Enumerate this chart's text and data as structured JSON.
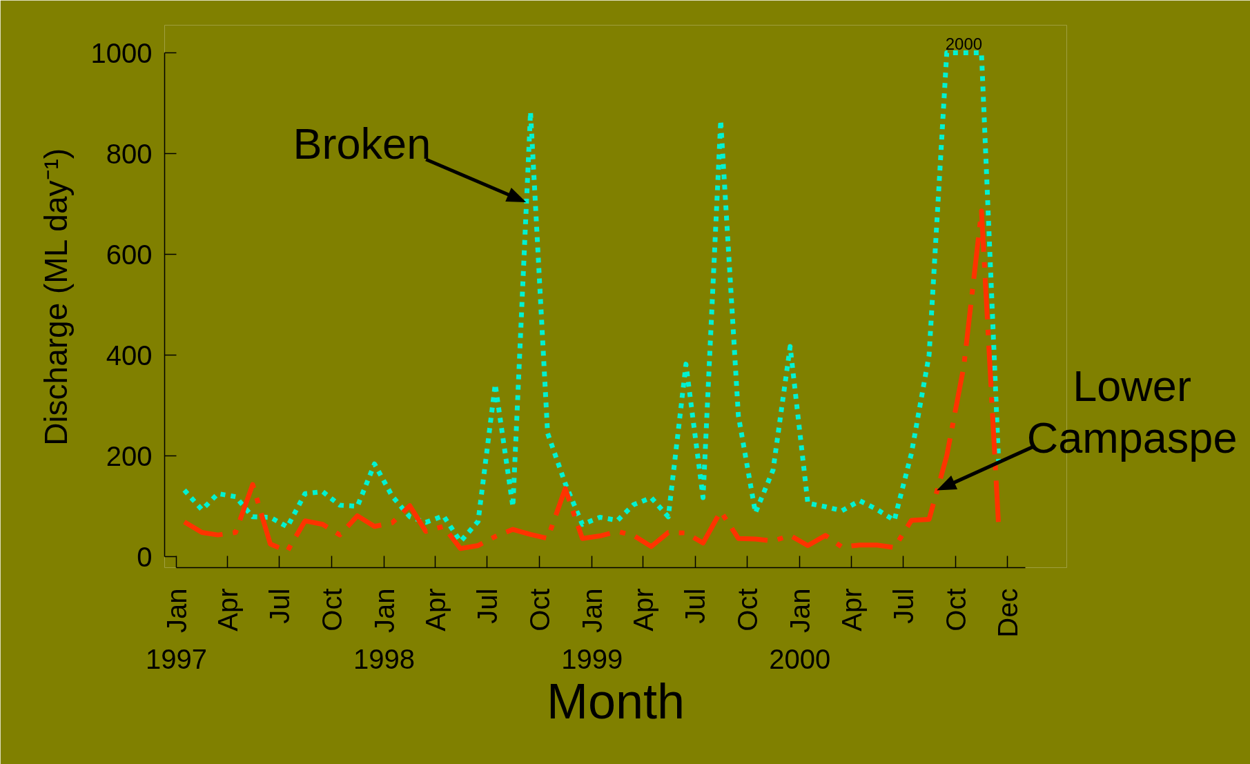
{
  "chart_data": {
    "type": "line",
    "xlabel": "Month",
    "ylabel": "Discharge (ML day⁻¹)",
    "x": [
      "1997-01-15",
      "1997-02-15",
      "1997-03-15",
      "1997-04-15",
      "1997-05-15",
      "1997-06-15",
      "1997-07-15",
      "1997-08-15",
      "1997-09-15",
      "1997-10-15",
      "1997-11-15",
      "1997-12-15",
      "1998-01-15",
      "1998-02-15",
      "1998-03-15",
      "1998-04-15",
      "1998-05-15",
      "1998-06-15",
      "1998-07-15",
      "1998-08-15",
      "1998-09-15",
      "1998-10-15",
      "1998-11-15",
      "1998-12-15",
      "1999-01-15",
      "1999-02-15",
      "1999-03-15",
      "1999-04-15",
      "1999-05-15",
      "1999-06-15",
      "1999-07-15",
      "1999-08-15",
      "1999-09-15",
      "1999-10-15",
      "1999-11-15",
      "1999-12-15",
      "2000-01-15",
      "2000-02-15",
      "2000-03-15",
      "2000-04-15",
      "2000-05-15",
      "2000-06-15",
      "2000-07-15",
      "2000-08-15",
      "2000-09-15",
      "2000-10-15",
      "2000-11-15",
      "2000-12-15"
    ],
    "xlim": [
      "1997-01-01",
      "2001-01-31"
    ],
    "xticks": [
      {
        "value": "1997-01-01",
        "label": "Jan"
      },
      {
        "value": "1997-04-01",
        "label": "Apr"
      },
      {
        "value": "1997-07-01",
        "label": "Jul"
      },
      {
        "value": "1997-10-01",
        "label": "Oct"
      },
      {
        "value": "1998-01-01",
        "label": "Jan"
      },
      {
        "value": "1998-04-01",
        "label": "Apr"
      },
      {
        "value": "1998-07-01",
        "label": "Jul"
      },
      {
        "value": "1998-10-01",
        "label": "Oct"
      },
      {
        "value": "1999-01-01",
        "label": "Jan"
      },
      {
        "value": "1999-04-01",
        "label": "Apr"
      },
      {
        "value": "1999-07-01",
        "label": "Jul"
      },
      {
        "value": "1999-10-01",
        "label": "Oct"
      },
      {
        "value": "2000-01-01",
        "label": "Jan"
      },
      {
        "value": "2000-04-01",
        "label": "Apr"
      },
      {
        "value": "2000-07-01",
        "label": "Jul"
      },
      {
        "value": "2000-10-01",
        "label": "Oct"
      },
      {
        "value": "2000-12-31",
        "label": "Dec"
      }
    ],
    "x2lim": [
      "1997-01-01",
      "2000-01-01"
    ],
    "x2ticks": [
      {
        "value": "1997-01-01",
        "label": "1997"
      },
      {
        "value": "1998-01-01",
        "label": "1998"
      },
      {
        "value": "1999-01-01",
        "label": "1999"
      },
      {
        "value": "2000-01-01",
        "label": "2000"
      }
    ],
    "ylim": [
      0,
      1000
    ],
    "yticks": [
      0,
      200,
      400,
      600,
      800,
      1000
    ],
    "series": [
      {
        "name": "Broken",
        "color": "#00f2d2",
        "line_style": "dotted",
        "values": [
          132,
          93,
          125,
          119,
          79,
          78,
          59,
          125,
          129,
          102,
          100,
          184,
          120,
          79,
          68,
          81,
          30,
          70,
          342,
          99,
          883,
          245,
          145,
          64,
          78,
          72,
          103,
          117,
          79,
          382,
          117,
          866,
          280,
          87,
          172,
          417,
          106,
          99,
          91,
          111,
          94,
          72,
          205,
          400,
          1000,
          1000,
          1000,
          190
        ]
      },
      {
        "name": "Lower Campaspe",
        "color": "#ff3300",
        "line_style": "dashdot",
        "values": [
          69,
          48,
          43,
          48,
          143,
          25,
          11,
          71,
          64,
          43,
          81,
          60,
          67,
          101,
          50,
          60,
          16,
          22,
          40,
          54,
          44,
          36,
          135,
          36,
          41,
          50,
          42,
          20,
          48,
          47,
          27,
          90,
          36,
          35,
          31,
          42,
          22,
          42,
          19,
          23,
          23,
          18,
          72,
          74,
          200,
          378,
          686,
          62
        ]
      }
    ],
    "annotations": [
      {
        "text": "2000",
        "x": "2000-10-15",
        "y": 1000
      }
    ]
  }
}
